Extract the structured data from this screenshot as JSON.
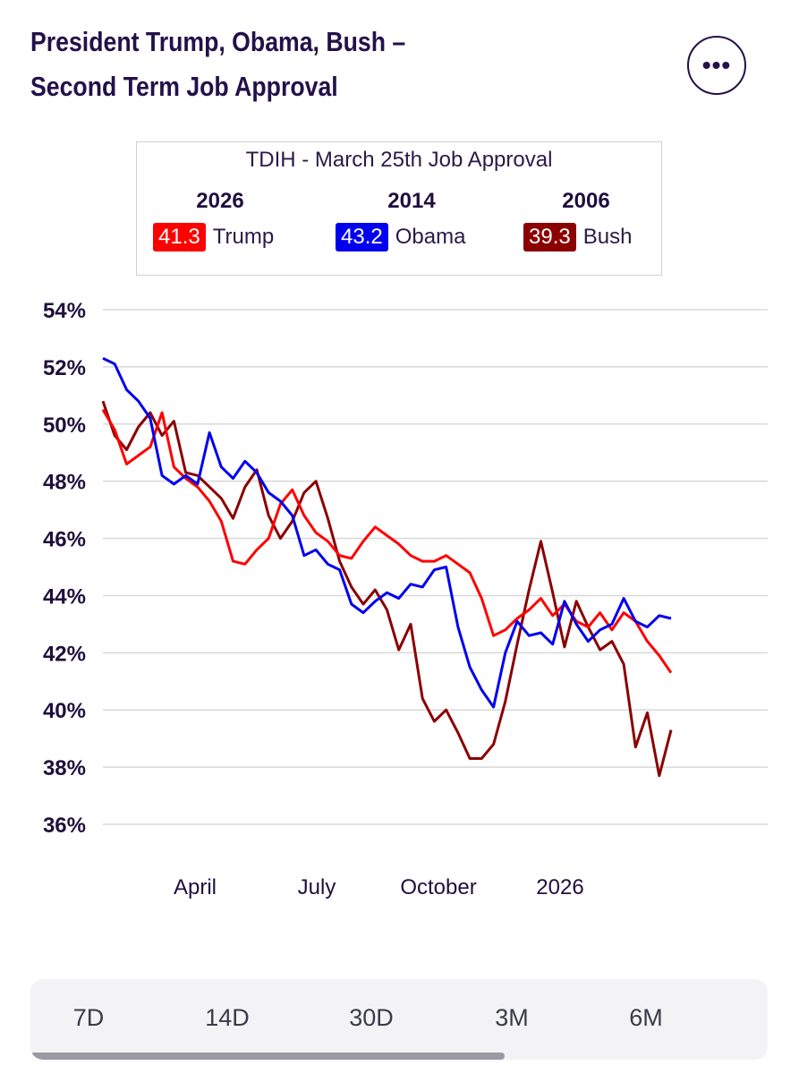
{
  "header": {
    "title_line1": "President Trump, Obama, Bush –",
    "title_line2": "Second Term Job Approval",
    "menu_label": "•••"
  },
  "legend": {
    "heading": "TDIH - March 25th Job Approval",
    "entries": [
      {
        "year": "2026",
        "value": "41.3",
        "name": "Trump",
        "color": "#ff0000"
      },
      {
        "year": "2014",
        "value": "43.2",
        "name": "Obama",
        "color": "#0000ee"
      },
      {
        "year": "2006",
        "value": "39.3",
        "name": "Bush",
        "color": "#8b0000"
      }
    ]
  },
  "chart_data": {
    "type": "line",
    "title": "President Trump, Obama, Bush – Second Term Job Approval",
    "ylim": [
      36,
      54
    ],
    "yticks": [
      "54%",
      "52%",
      "50%",
      "48%",
      "46%",
      "44%",
      "42%",
      "40%",
      "38%",
      "36%"
    ],
    "xticks": [
      "April",
      "July",
      "October",
      "2026"
    ],
    "grid": true,
    "series": [
      {
        "name": "Trump",
        "color": "#ff0000",
        "values": [
          50.5,
          49.8,
          48.6,
          48.9,
          49.2,
          50.4,
          48.5,
          48.1,
          47.8,
          47.3,
          46.6,
          45.2,
          45.1,
          45.6,
          46.0,
          47.2,
          47.7,
          46.8,
          46.2,
          45.9,
          45.4,
          45.3,
          45.9,
          46.4,
          46.1,
          45.8,
          45.4,
          45.2,
          45.2,
          45.4,
          45.1,
          44.8,
          43.9,
          42.6,
          42.8,
          43.2,
          43.5,
          43.9,
          43.3,
          43.7,
          43.1,
          42.9,
          43.4,
          42.8,
          43.4,
          43.1,
          42.4,
          41.9,
          41.3
        ]
      },
      {
        "name": "Obama",
        "color": "#0000ee",
        "values": [
          52.3,
          52.1,
          51.2,
          50.8,
          50.2,
          48.2,
          47.9,
          48.2,
          47.9,
          49.7,
          48.5,
          48.1,
          48.7,
          48.3,
          47.6,
          47.3,
          46.8,
          45.4,
          45.6,
          45.1,
          44.9,
          43.7,
          43.4,
          43.8,
          44.1,
          43.9,
          44.4,
          44.3,
          44.9,
          45.0,
          42.9,
          41.5,
          40.7,
          40.1,
          42.0,
          43.1,
          42.6,
          42.7,
          42.3,
          43.8,
          43.0,
          42.4,
          42.8,
          43.0,
          43.9,
          43.1,
          42.9,
          43.3,
          43.2
        ]
      },
      {
        "name": "Bush",
        "color": "#8b0000",
        "values": [
          50.8,
          49.6,
          49.1,
          49.9,
          50.4,
          49.6,
          50.1,
          48.3,
          48.2,
          47.8,
          47.4,
          46.7,
          47.8,
          48.4,
          46.8,
          46.0,
          46.6,
          47.6,
          48.0,
          46.7,
          45.2,
          44.3,
          43.7,
          44.2,
          43.5,
          42.1,
          43.0,
          40.4,
          39.6,
          40.0,
          39.2,
          38.3,
          38.3,
          38.8,
          40.3,
          42.3,
          44.2,
          45.9,
          44.1,
          42.2,
          43.8,
          42.9,
          42.1,
          42.4,
          41.6,
          38.7,
          39.9,
          37.7,
          39.3
        ]
      }
    ]
  },
  "range_tabs": [
    "7D",
    "14D",
    "30D",
    "3M",
    "6M"
  ]
}
